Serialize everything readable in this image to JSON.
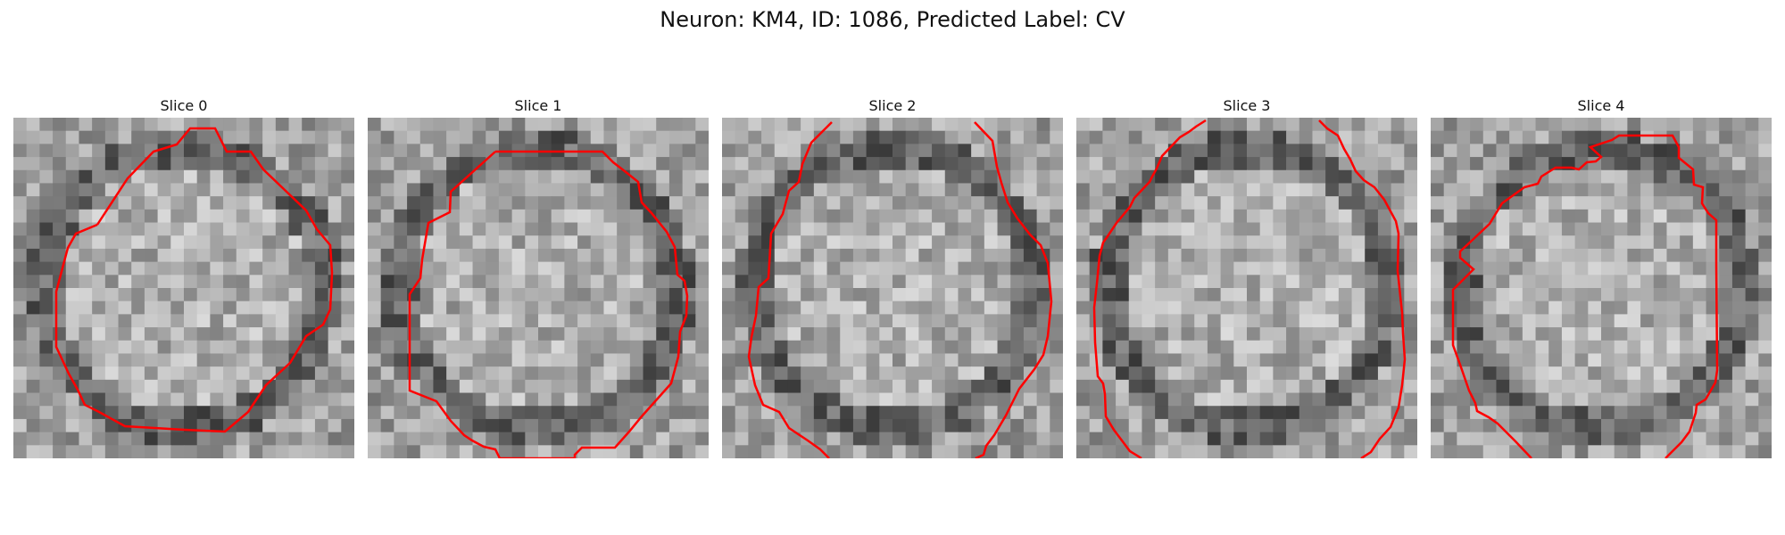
{
  "figure": {
    "title": "Neuron: KM4, ID: 1086, Predicted Label: CV"
  },
  "slices": [
    {
      "title": "Slice 0"
    },
    {
      "title": "Slice 1"
    },
    {
      "title": "Slice 2"
    },
    {
      "title": "Slice 3"
    },
    {
      "title": "Slice 4"
    }
  ],
  "colors": {
    "contour": "#ff0000",
    "background": "#ffffff"
  }
}
